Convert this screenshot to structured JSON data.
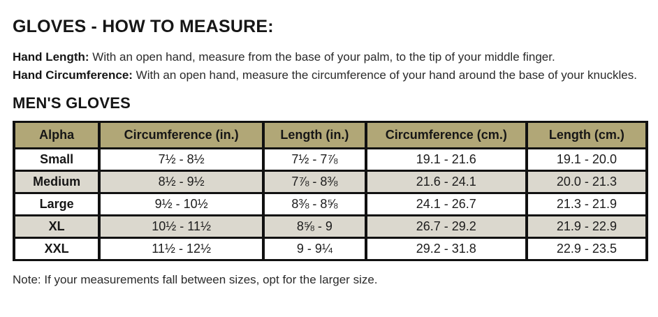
{
  "page": {
    "title": "GLOVES - HOW TO MEASURE:",
    "instructions": {
      "0": {
        "label": "Hand Length:",
        "text": " With an open hand, measure from the base of your palm, to the tip of your middle finger."
      },
      "1": {
        "label": "Hand Circumference:",
        "text": " With an open hand, measure the circumference of your hand around the base of your knuckles."
      }
    },
    "section_title": "MEN'S GLOVES",
    "note": "Note: If your measurements fall between sizes, opt for the larger size."
  },
  "size_table": {
    "headers": [
      "Alpha",
      "Circumference (in.)",
      "Length (in.)",
      "Circumference (cm.)",
      "Length (cm.)"
    ],
    "rows": [
      {
        "alpha": "Small",
        "circ_in": "7½ - 8½",
        "len_in": "7½ - 7⅞",
        "circ_cm": "19.1 - 21.6",
        "len_cm": "19.1 - 20.0"
      },
      {
        "alpha": "Medium",
        "circ_in": "8½ - 9½",
        "len_in": "7⅞ - 8⅜",
        "circ_cm": "21.6 - 24.1",
        "len_cm": "20.0 - 21.3"
      },
      {
        "alpha": "Large",
        "circ_in": "9½ - 10½",
        "len_in": "8⅜ - 8⅝",
        "circ_cm": "24.1 - 26.7",
        "len_cm": "21.3 - 21.9"
      },
      {
        "alpha": "XL",
        "circ_in": "10½ - 11½",
        "len_in": "8⅝ - 9",
        "circ_cm": "26.7 - 29.2",
        "len_cm": "21.9 - 22.9"
      },
      {
        "alpha": "XXL",
        "circ_in": "11½ - 12½",
        "len_in": "9 - 9¼",
        "circ_cm": "29.2 - 31.8",
        "len_cm": "22.9 - 23.5"
      }
    ]
  },
  "colors": {
    "header_bg": "#b1a777",
    "alt_row_bg": "#dbd8ce",
    "border": "#111111",
    "text": "#1c1c1c"
  }
}
